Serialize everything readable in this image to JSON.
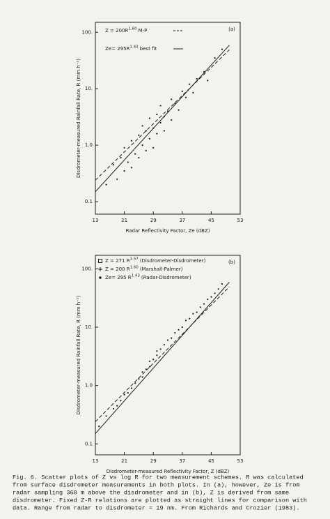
{
  "chart_data": [
    {
      "type": "scatter",
      "panel_label": "(a)",
      "log_y": true,
      "color": "#1c1c1c",
      "xlabel": "Radar Reflectivity Factor, Ze (dBZ)",
      "ylabel": "Disdrometer-measured Rainfall Rate, R (mm h⁻¹)",
      "xlim": [
        13,
        53
      ],
      "xticks": [
        13,
        21,
        29,
        37,
        45,
        53
      ],
      "ylim": [
        0.06,
        150
      ],
      "yticks": [
        {
          "value": 0.1,
          "label": "0.1"
        },
        {
          "value": 1,
          "label": "1.0"
        },
        {
          "value": 10,
          "label": "10."
        },
        {
          "value": 100,
          "label": "100."
        }
      ],
      "points": {
        "x": [
          16,
          18,
          19,
          20,
          21,
          21,
          22,
          23,
          23,
          24,
          25,
          25,
          26,
          26,
          27,
          27,
          28,
          28,
          29,
          29,
          30,
          30,
          31,
          31,
          32,
          32,
          33,
          34,
          34,
          35,
          36,
          37,
          38,
          39,
          40,
          41,
          43,
          44,
          46,
          48
        ],
        "values": [
          0.2,
          0.45,
          0.25,
          0.6,
          0.35,
          0.9,
          0.5,
          1.2,
          0.4,
          0.7,
          1.5,
          0.6,
          1.0,
          2.2,
          0.8,
          1.8,
          3.0,
          1.3,
          2.0,
          0.9,
          3.5,
          1.6,
          2.5,
          5.0,
          3.2,
          1.8,
          4.0,
          6.5,
          2.8,
          5.5,
          4.2,
          9.0,
          7.0,
          12,
          8.5,
          15,
          20,
          14,
          35,
          50
        ]
      },
      "lines": [
        {
          "name": "Z = 200R",
          "exponent": "1.60",
          "note": "M-P",
          "dash": true,
          "x": [
            13,
            50
          ],
          "values": [
            0.24,
            49
          ]
        },
        {
          "name": "Ze= 295R",
          "exponent": "1.43",
          "note": "best fit",
          "dash": false,
          "x": [
            13,
            50
          ],
          "values": [
            0.15,
            59
          ]
        }
      ]
    },
    {
      "type": "scatter",
      "panel_label": "(b)",
      "log_y": true,
      "color": "#1c1c1c",
      "xlabel": "Disdrometer-measured Reflectivity Factor, Z (dBZ)",
      "ylabel": "Disdrometer-measured Rainfall Rate, R (mm h⁻¹)",
      "xlim": [
        13,
        53
      ],
      "xticks": [
        13,
        21,
        29,
        37,
        45,
        53
      ],
      "ylim": [
        0.065,
        170
      ],
      "yticks": [
        {
          "value": 0.1,
          "label": "0.1"
        },
        {
          "value": 1,
          "label": "1.0"
        },
        {
          "value": 10,
          "label": "10."
        },
        {
          "value": 100,
          "label": "100."
        }
      ],
      "points": {
        "x": [
          14,
          16,
          18,
          19,
          20,
          21,
          22,
          23,
          24,
          25,
          26,
          26,
          27,
          28,
          28,
          29,
          30,
          30,
          31,
          32,
          33,
          34,
          35,
          36,
          37,
          38,
          39,
          40,
          41,
          42,
          43,
          44,
          45,
          46,
          47,
          48
        ],
        "values": [
          0.2,
          0.3,
          0.4,
          0.45,
          0.55,
          0.7,
          0.75,
          0.9,
          1.1,
          1.3,
          1.4,
          1.7,
          1.9,
          2.1,
          2.6,
          2.8,
          3.3,
          3.9,
          4.2,
          5.0,
          6.0,
          6.5,
          8.0,
          9.0,
          10,
          13,
          14,
          17,
          18,
          22,
          25,
          30,
          33,
          38,
          45,
          55
        ]
      },
      "legend": [
        {
          "marker": "square",
          "name": "Z = 271 R",
          "exponent": "1.57",
          "note": "(Disdrometer-Disdrometer)"
        },
        {
          "marker": "plus",
          "name": "Z = 200 R",
          "exponent": "1.60",
          "note": "(Marshall-Palmer)"
        },
        {
          "marker": "dot",
          "name": "Ze= 295 R",
          "exponent": "1.43",
          "note": "(Radar-Disdrometer)"
        }
      ],
      "lines": [
        {
          "dash": true,
          "x": [
            13,
            50
          ],
          "values": [
            0.24,
            49
          ]
        },
        {
          "dash": false,
          "x": [
            13,
            50
          ],
          "values": [
            0.15,
            59
          ]
        }
      ]
    }
  ],
  "caption": [
    "Fig. 6.  Scatter plots of Z vs log R for two measurement schemes.  R was calculated",
    "from surface disdrometer measurements in both plots.  In (a), however, Ze is from",
    "radar sampling 360 m above the disdrometer and in (b), Z is derived from same",
    "disdrometer.  Fixed Z-R relations are plotted as straight lines for comparison with",
    "data.  Range from radar to disdrometer = 19 nm.  From Richards and Crozier (1983)."
  ]
}
